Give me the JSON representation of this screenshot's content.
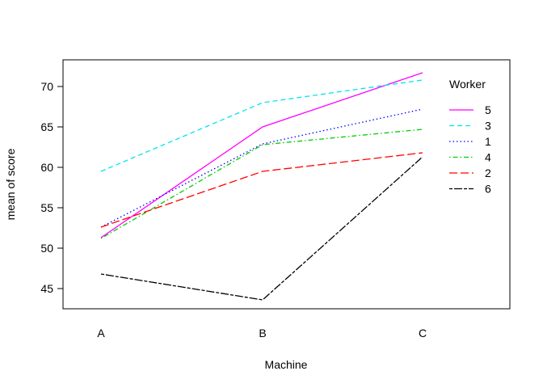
{
  "chart_data": {
    "type": "line",
    "title": "",
    "xlabel": "Machine",
    "ylabel": "mean of  score",
    "categories": [
      "A",
      "B",
      "C"
    ],
    "yticks": [
      45,
      50,
      55,
      60,
      65,
      70
    ],
    "ylim": [
      42.5,
      73.0
    ],
    "grid": false,
    "legend": {
      "title": "Worker",
      "position": "top-right"
    },
    "series": [
      {
        "name": "5",
        "values": [
          51.3,
          65.0,
          71.7
        ],
        "color": "#ff00ff",
        "dash": "solid"
      },
      {
        "name": "3",
        "values": [
          59.5,
          68.0,
          70.8
        ],
        "color": "#00e5ee",
        "dash": "dashed"
      },
      {
        "name": "1",
        "values": [
          52.6,
          62.9,
          67.2
        ],
        "color": "#0000ff",
        "dash": "dotted"
      },
      {
        "name": "4",
        "values": [
          51.2,
          62.8,
          64.7
        ],
        "color": "#00cd00",
        "dash": "dotdash"
      },
      {
        "name": "2",
        "values": [
          52.6,
          59.5,
          61.8
        ],
        "color": "#ff0000",
        "dash": "longdash"
      },
      {
        "name": "6",
        "values": [
          46.8,
          43.6,
          61.3
        ],
        "color": "#000000",
        "dash": "twodash"
      }
    ]
  }
}
